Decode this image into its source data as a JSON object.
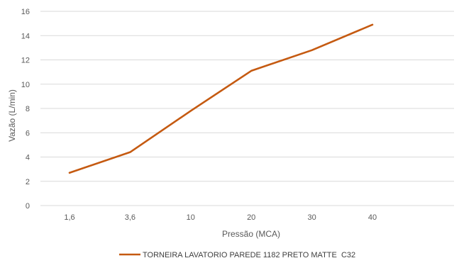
{
  "chart_data": {
    "type": "line",
    "title": "",
    "xlabel": "Pressão (MCA)",
    "ylabel": "Vazão (L/min)",
    "categories": [
      "1,6",
      "3,6",
      "10",
      "20",
      "30",
      "40"
    ],
    "ylim": [
      0,
      16
    ],
    "yticks": [
      0,
      2,
      4,
      6,
      8,
      10,
      12,
      14,
      16
    ],
    "grid": true,
    "legend_position": "bottom",
    "series": [
      {
        "name": "TORNEIRA LAVATORIO PAREDE 1182 PRETO MATTE  C32",
        "values": [
          2.7,
          4.4,
          7.8,
          11.1,
          12.8,
          14.9
        ],
        "color": "#C55A11"
      }
    ]
  },
  "colors": {
    "gridline": "#D9D9D9",
    "text": "#595959"
  }
}
